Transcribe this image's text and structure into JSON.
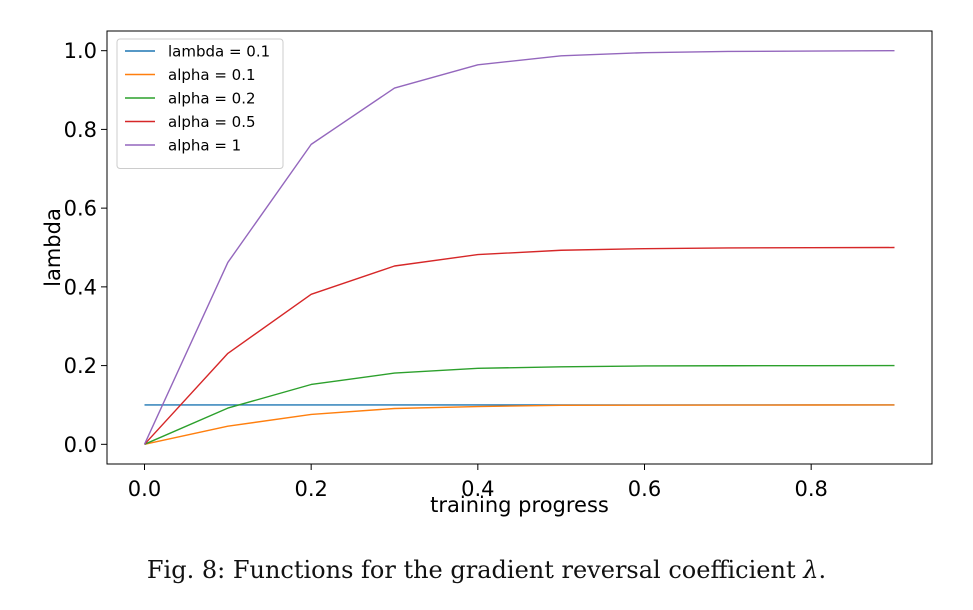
{
  "caption": {
    "prefix": "Fig. 8: Functions for the gradient reversal coefficient ",
    "symbol": "λ",
    "suffix": "."
  },
  "chart_data": {
    "type": "line",
    "title": "",
    "xlabel": "training progress",
    "ylabel": "lambda",
    "xlim": [
      -0.045,
      0.945
    ],
    "ylim": [
      -0.05,
      1.05
    ],
    "grid": false,
    "legend_position": "top-left",
    "x_ticks": [
      {
        "value": 0.0,
        "label": "0.0"
      },
      {
        "value": 0.2,
        "label": "0.2"
      },
      {
        "value": 0.4,
        "label": "0.4"
      },
      {
        "value": 0.6,
        "label": "0.6"
      },
      {
        "value": 0.8,
        "label": "0.8"
      }
    ],
    "y_ticks": [
      {
        "value": 0.0,
        "label": "0.0"
      },
      {
        "value": 0.2,
        "label": "0.2"
      },
      {
        "value": 0.4,
        "label": "0.4"
      },
      {
        "value": 0.6,
        "label": "0.6"
      },
      {
        "value": 0.8,
        "label": "0.8"
      },
      {
        "value": 1.0,
        "label": "1.0"
      }
    ],
    "x": [
      0.0,
      0.1,
      0.2,
      0.3,
      0.4,
      0.5,
      0.6,
      0.7,
      0.8,
      0.9
    ],
    "series": [
      {
        "name": "lambda = 0.1",
        "color": "#1f77b4",
        "values": [
          0.1,
          0.1,
          0.1,
          0.1,
          0.1,
          0.1,
          0.1,
          0.1,
          0.1,
          0.1
        ]
      },
      {
        "name": "alpha = 0.1",
        "color": "#ff7f0e",
        "values": [
          0.0,
          0.046,
          0.076,
          0.091,
          0.096,
          0.099,
          0.0995,
          0.0998,
          0.0999,
          0.1
        ]
      },
      {
        "name": "alpha = 0.2",
        "color": "#2ca02c",
        "values": [
          0.0,
          0.092,
          0.152,
          0.181,
          0.193,
          0.197,
          0.199,
          0.1996,
          0.1998,
          0.2
        ]
      },
      {
        "name": "alpha = 0.5",
        "color": "#d62728",
        "values": [
          0.0,
          0.231,
          0.381,
          0.453,
          0.482,
          0.493,
          0.497,
          0.499,
          0.4995,
          0.5
        ]
      },
      {
        "name": "alpha = 1",
        "color": "#9467bd",
        "values": [
          0.0,
          0.462,
          0.762,
          0.905,
          0.964,
          0.987,
          0.995,
          0.998,
          0.999,
          1.0
        ]
      }
    ]
  }
}
